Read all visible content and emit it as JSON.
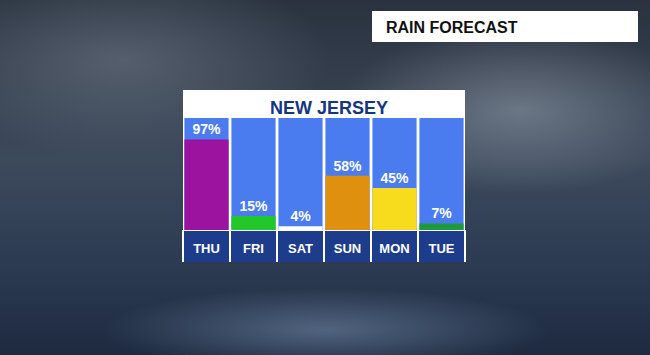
{
  "chart_data": {
    "type": "bar",
    "title": "RAIN FORECAST",
    "subtitle": "NEW JERSEY",
    "categories": [
      "THU",
      "FRI",
      "SAT",
      "SUN",
      "MON",
      "TUE"
    ],
    "values": [
      97,
      15,
      4,
      58,
      45,
      7
    ],
    "value_labels": [
      "97%",
      "15%",
      "4%",
      "58%",
      "45%",
      "7%"
    ],
    "colors": [
      "#9c139f",
      "#22c72a",
      "#ffffff",
      "#e0900f",
      "#f6dc1c",
      "#1f9a3a"
    ],
    "ylim": [
      0,
      120
    ],
    "grid": false,
    "data_labels": true,
    "tick_labels": "x"
  }
}
